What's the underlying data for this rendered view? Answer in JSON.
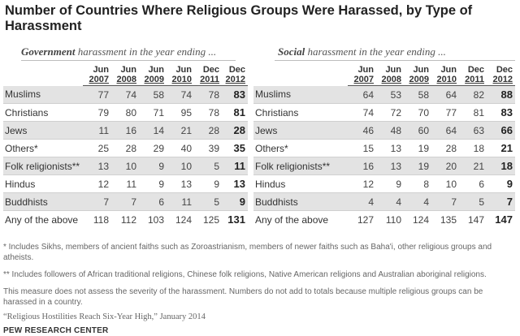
{
  "title": "Number of Countries Where Religious Groups Were Harassed, by Type of Harassment",
  "subheads": {
    "government_bold": "Government",
    "government_rest": " harassment in the year ending ...",
    "social_bold": "Social",
    "social_rest": " harassment in the year ending ..."
  },
  "columns": [
    {
      "mon": "Jun",
      "yr": "2007"
    },
    {
      "mon": "Jun",
      "yr": "2008"
    },
    {
      "mon": "Jun",
      "yr": "2009"
    },
    {
      "mon": "Jun",
      "yr": "2010"
    },
    {
      "mon": "Dec",
      "yr": "2011"
    },
    {
      "mon": "Dec",
      "yr": "2012"
    }
  ],
  "chart_data": [
    {
      "type": "table",
      "title": "Government harassment in the year ending ...",
      "categories": [
        "Jun 2007",
        "Jun 2008",
        "Jun 2009",
        "Jun 2010",
        "Dec 2011",
        "Dec 2012"
      ],
      "rows": [
        {
          "label": "Muslims",
          "values": [
            "77",
            "74",
            "58",
            "74",
            "78",
            "83"
          ]
        },
        {
          "label": "Christians",
          "values": [
            "79",
            "80",
            "71",
            "95",
            "78",
            "81"
          ]
        },
        {
          "label": "Jews",
          "values": [
            "11",
            "16",
            "14",
            "21",
            "28",
            "28"
          ]
        },
        {
          "label": "Others*",
          "values": [
            "25",
            "28",
            "29",
            "40",
            "39",
            "35"
          ]
        },
        {
          "label": "Folk religionists**",
          "values": [
            "13",
            "10",
            "9",
            "10",
            "5",
            "11"
          ]
        },
        {
          "label": "Hindus",
          "values": [
            "12",
            "11",
            "9",
            "13",
            "9",
            "13"
          ]
        },
        {
          "label": "Buddhists",
          "values": [
            "7",
            "7",
            "6",
            "11",
            "5",
            "9"
          ]
        },
        {
          "label": "Any of the above",
          "values": [
            "118",
            "112",
            "103",
            "124",
            "125",
            "131"
          ]
        }
      ]
    },
    {
      "type": "table",
      "title": "Social harassment in the year ending ...",
      "categories": [
        "Jun 2007",
        "Jun 2008",
        "Jun 2009",
        "Jun 2010",
        "Dec 2011",
        "Dec 2012"
      ],
      "rows": [
        {
          "label": "Muslims",
          "values": [
            "64",
            "53",
            "58",
            "64",
            "82",
            "88"
          ]
        },
        {
          "label": "Christians",
          "values": [
            "74",
            "72",
            "70",
            "77",
            "81",
            "83"
          ]
        },
        {
          "label": "Jews",
          "values": [
            "46",
            "48",
            "60",
            "64",
            "63",
            "66"
          ]
        },
        {
          "label": "Others*",
          "values": [
            "15",
            "13",
            "19",
            "28",
            "18",
            "21"
          ]
        },
        {
          "label": "Folk religionists**",
          "values": [
            "16",
            "13",
            "19",
            "20",
            "21",
            "18"
          ]
        },
        {
          "label": "Hindus",
          "values": [
            "12",
            "9",
            "8",
            "10",
            "6",
            "9"
          ]
        },
        {
          "label": "Buddhists",
          "values": [
            "4",
            "4",
            "4",
            "7",
            "5",
            "7"
          ]
        },
        {
          "label": "Any of the above",
          "values": [
            "127",
            "110",
            "124",
            "135",
            "147",
            "147"
          ]
        }
      ]
    }
  ],
  "notes": {
    "n1": "* Includes Sikhs, members of ancient faiths such as Zoroastrianism, members of newer faiths such as Baha'i, other religious groups and atheists.",
    "n2": "** Includes followers of African traditional religions, Chinese folk religions, Native American religions and Australian aboriginal religions.",
    "n3": "This measure does not assess the severity of the harassment. Numbers do not add to totals because multiple religious groups can be harassed in a country.",
    "source": "“Religious Hostilities Reach Six-Year High,” January 2014",
    "org": "PEW RESEARCH CENTER"
  },
  "colors": {
    "shade": "#e3e3e3",
    "rule": "#555555"
  }
}
